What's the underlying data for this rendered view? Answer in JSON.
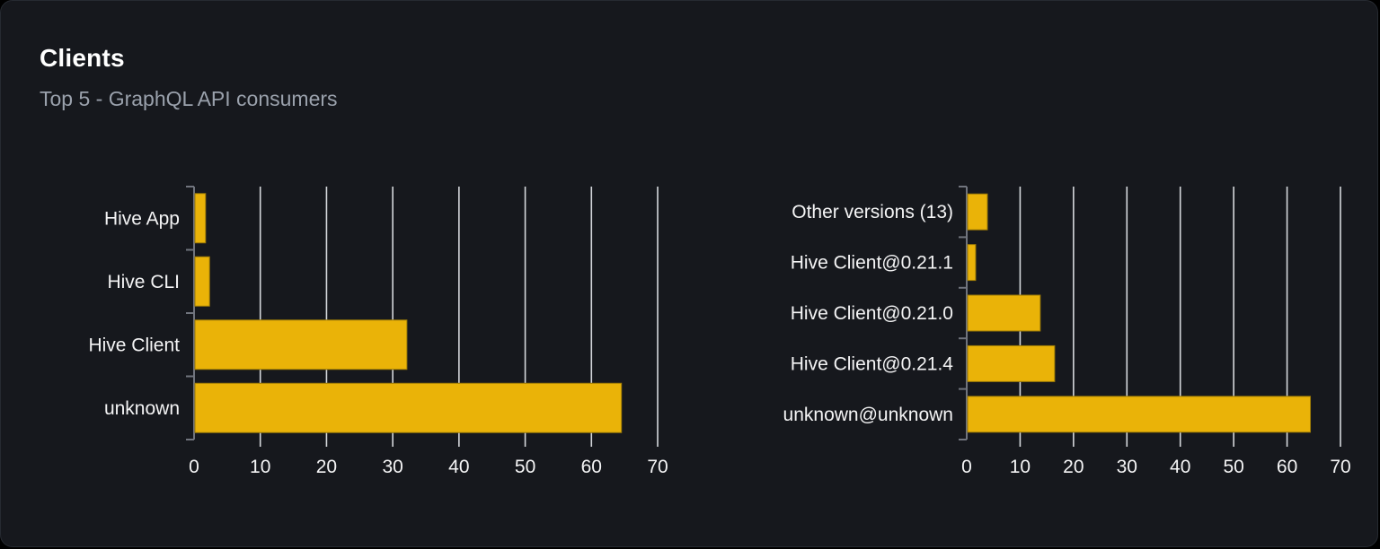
{
  "card": {
    "title": "Clients",
    "subtitle": "Top 5 - GraphQL API consumers"
  },
  "colors": {
    "bar": "#eab308",
    "bar_stroke": "#9c7a06",
    "grid": "#d5d8dc",
    "axis": "#70747d",
    "text": "#f4f4f5",
    "subtitle": "#9aa1ac",
    "panel_bg": "#16181d",
    "panel_border": "#262a31",
    "page_bg": "#000000"
  },
  "chart_data": [
    {
      "type": "bar",
      "orientation": "horizontal",
      "title": "",
      "categories": [
        "Hive App",
        "Hive CLI",
        "Hive Client",
        "unknown"
      ],
      "values": [
        1.6,
        2.2,
        32,
        64.4
      ],
      "xlim": [
        0,
        70
      ],
      "xticks": [
        0,
        10,
        20,
        30,
        40,
        50,
        60,
        70
      ],
      "grid": true,
      "legend": false
    },
    {
      "type": "bar",
      "orientation": "horizontal",
      "title": "",
      "categories": [
        "Other versions (13)",
        "Hive Client@0.21.1",
        "Hive Client@0.21.0",
        "Hive Client@0.21.4",
        "unknown@unknown"
      ],
      "values": [
        3.7,
        1.5,
        13.6,
        16.3,
        64.2
      ],
      "xlim": [
        0,
        70
      ],
      "xticks": [
        0,
        10,
        20,
        30,
        40,
        50,
        60,
        70
      ],
      "grid": true,
      "legend": false
    }
  ]
}
